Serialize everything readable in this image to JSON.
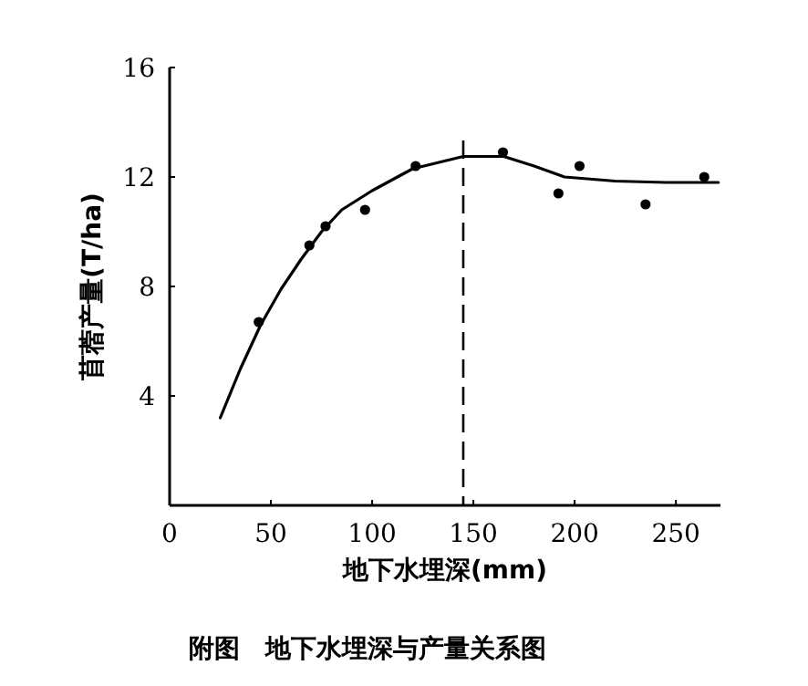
{
  "chart_data": {
    "type": "scatter",
    "title": "附图　地下水埋深与产量关系图",
    "xlabel": "地下水埋深(mm)",
    "ylabel": "苜蓿产量(T/ha)",
    "xlim": [
      0,
      272
    ],
    "xticks": [
      0,
      50,
      100,
      150,
      200,
      250
    ],
    "ylim": [
      0,
      16
    ],
    "yticks": [
      4,
      8,
      12,
      16
    ],
    "grid": false,
    "series": [
      {
        "marker": "circle",
        "color": "#000000",
        "x": [
          44,
          69,
          77,
          96.5,
          121.5,
          164.6,
          192,
          202.4,
          235,
          264
        ],
        "values": [
          6.7,
          9.5,
          10.2,
          10.8,
          12.4,
          12.9,
          11.4,
          12.4,
          11.0,
          12.0
        ]
      },
      {
        "type": "line",
        "marker": "none",
        "line_style": "solid",
        "color": "#000000",
        "x": [
          25,
          35,
          45,
          55,
          65,
          75,
          85,
          100,
          120,
          145,
          165,
          180,
          195,
          220,
          245,
          271
        ],
        "values": [
          3.2,
          5.0,
          6.6,
          7.9,
          9.0,
          10.0,
          10.8,
          11.5,
          12.3,
          12.75,
          12.75,
          12.4,
          12.0,
          11.85,
          11.8,
          11.8
        ]
      }
    ],
    "ref_lines": [
      {
        "axis": "x",
        "value": 145,
        "line_style": "dashed",
        "color": "#000000"
      }
    ]
  }
}
